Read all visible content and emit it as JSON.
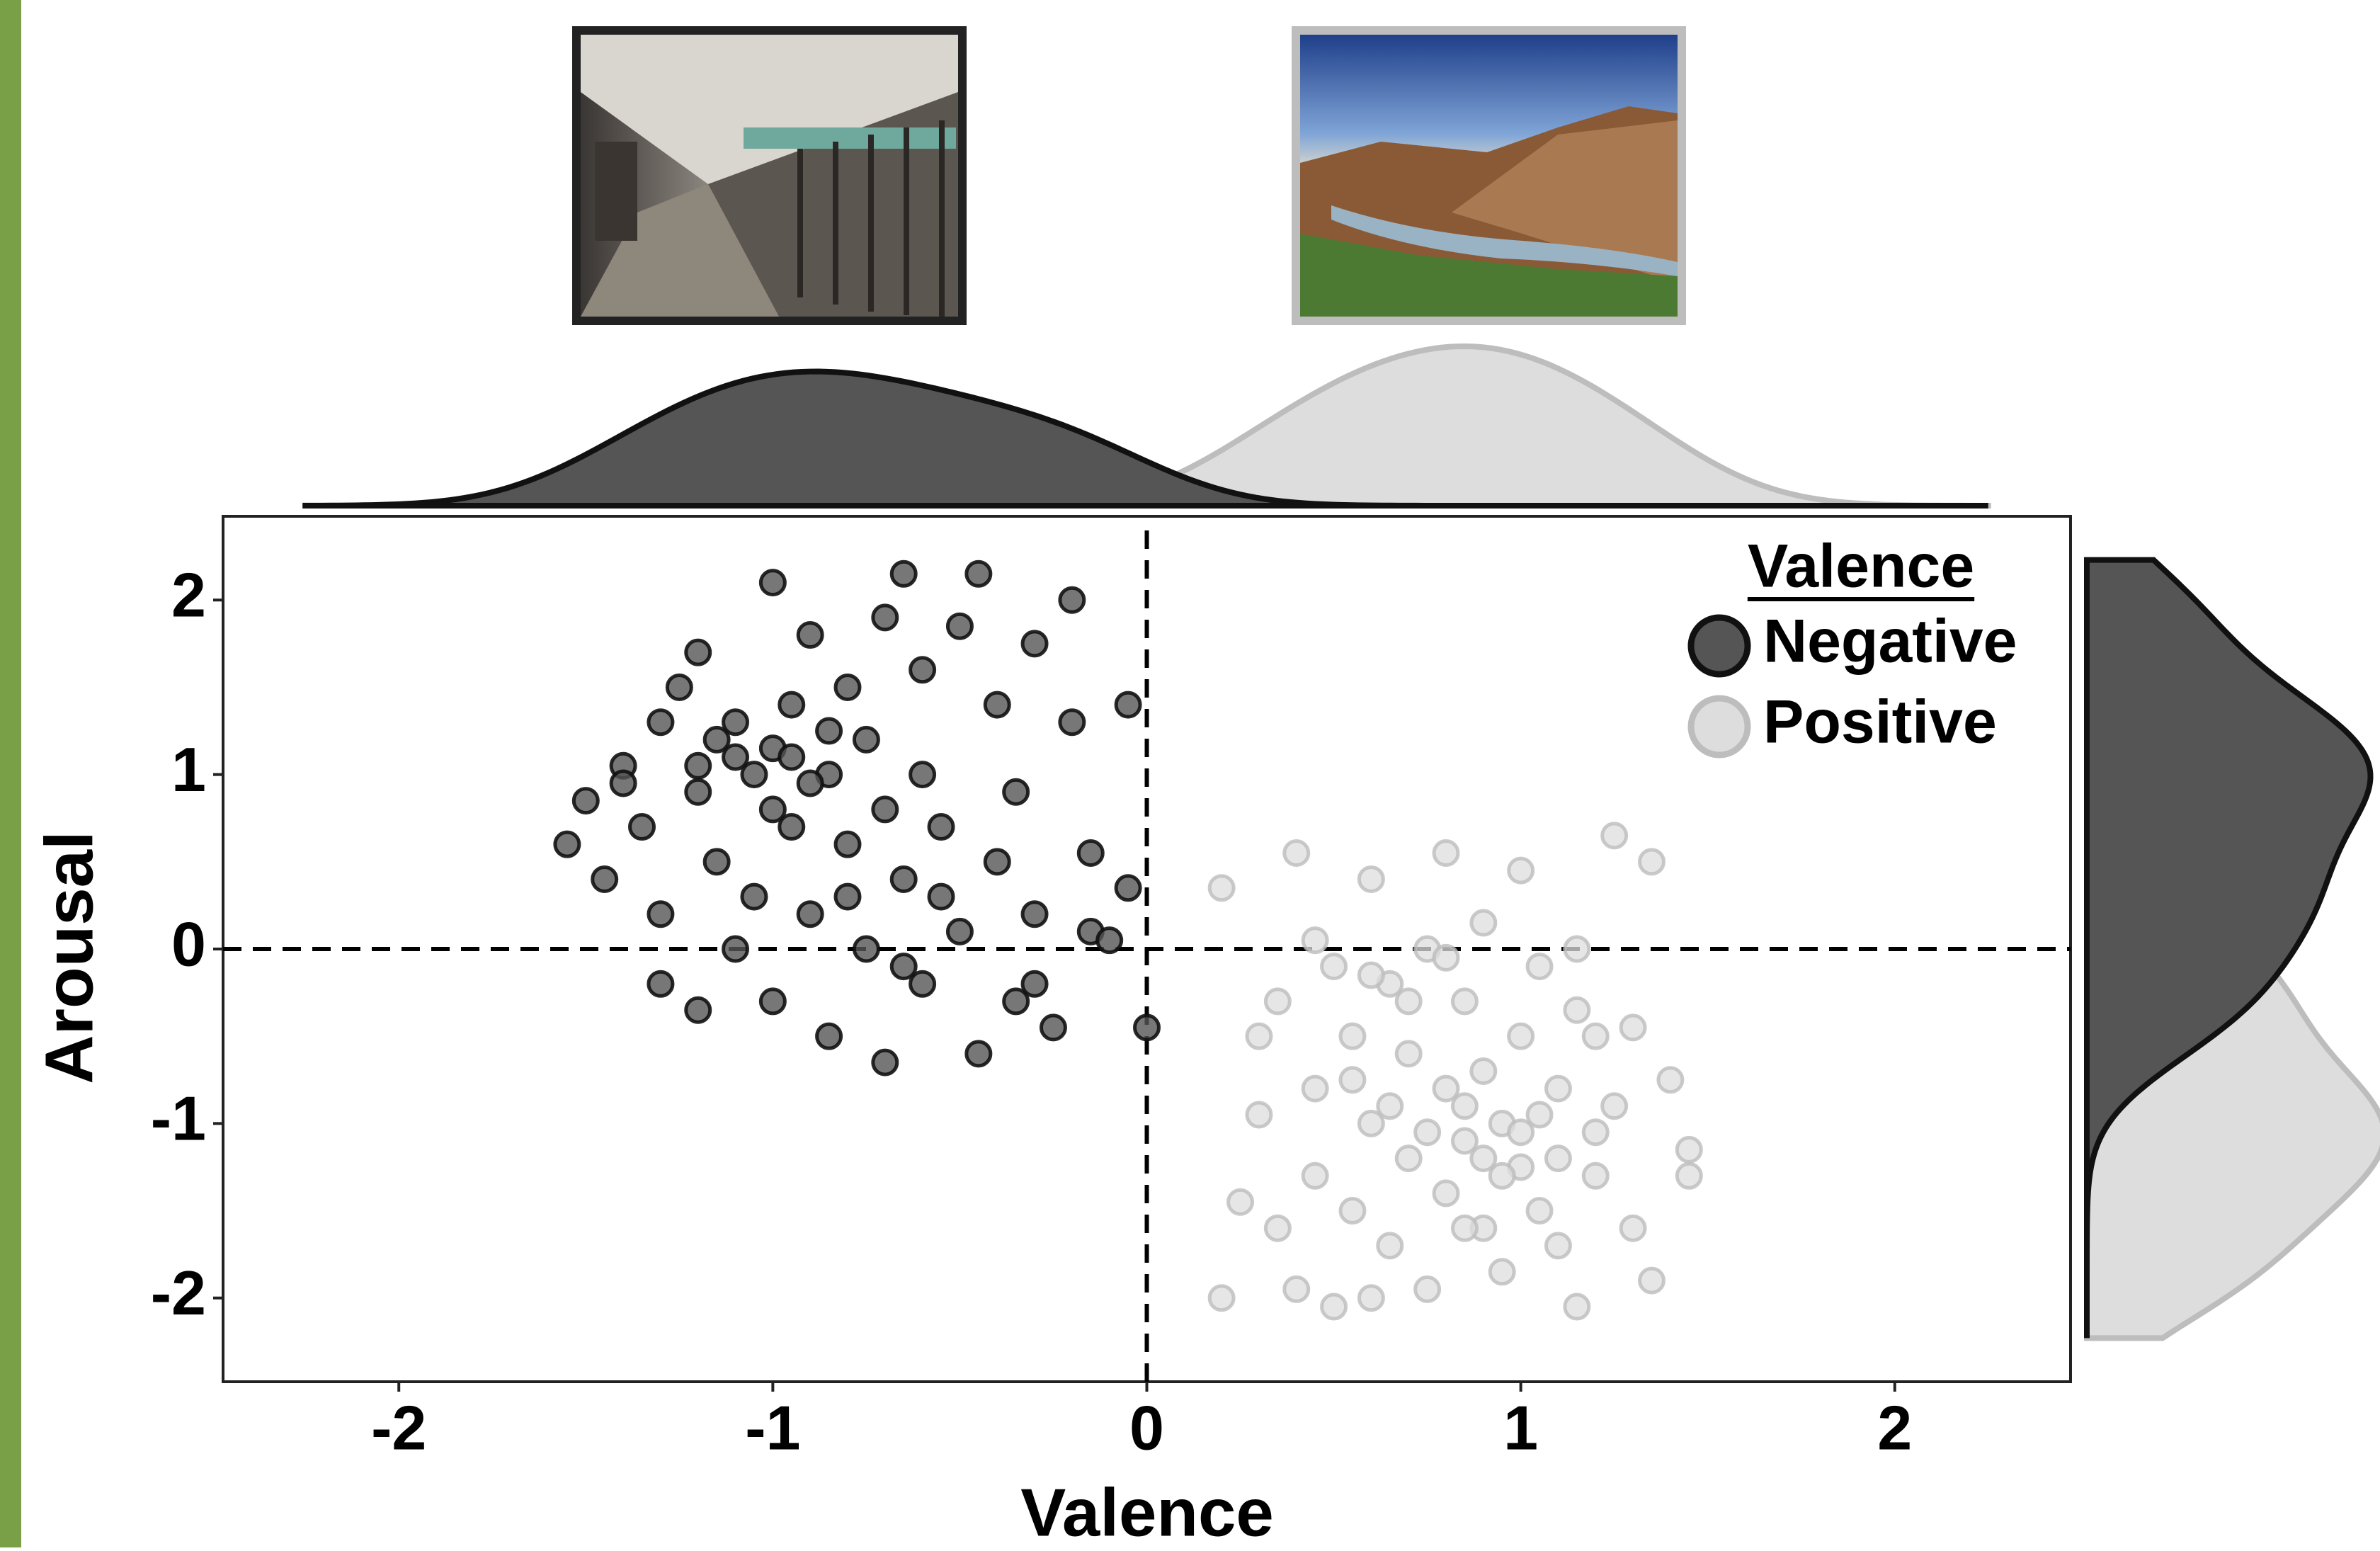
{
  "chart_data": {
    "type": "scatter",
    "x_label": "Valence",
    "y_label": "Arousal",
    "legend_title": "Valence",
    "xlim": [
      -2.47,
      2.47
    ],
    "ylim": [
      -2.48,
      2.48
    ],
    "xticks": [
      -2,
      -1,
      0,
      1,
      2
    ],
    "yticks": [
      -2,
      -1,
      0,
      1,
      2
    ],
    "reference_lines": {
      "x": 0,
      "y": 0
    },
    "legend_position": "top-right",
    "series": [
      {
        "name": "Negative",
        "color": "#555555",
        "edge_color": "#111111",
        "x": [
          -1.55,
          -1.5,
          -1.45,
          -1.4,
          -1.35,
          -1.3,
          -1.3,
          -1.25,
          -1.2,
          -1.2,
          -1.15,
          -1.15,
          -1.1,
          -1.1,
          -1.05,
          -1.05,
          -1.0,
          -1.0,
          -1.0,
          -0.95,
          -0.95,
          -0.9,
          -0.9,
          -0.85,
          -0.85,
          -0.8,
          -0.8,
          -0.75,
          -0.75,
          -0.7,
          -0.7,
          -0.7,
          -0.65,
          -0.65,
          -0.6,
          -0.6,
          -0.6,
          -0.55,
          -0.5,
          -0.5,
          -0.45,
          -0.45,
          -0.4,
          -0.4,
          -0.35,
          -0.35,
          -0.3,
          -0.3,
          -0.25,
          -0.2,
          -0.2,
          -0.15,
          -0.15,
          -0.05,
          -0.05,
          0.0,
          -1.3,
          -1.2,
          -0.9,
          -1.1,
          -1.0,
          -0.85,
          -0.95,
          -1.2,
          -0.8,
          -0.55,
          -0.65,
          -0.3,
          -1.4,
          -0.1
        ],
        "values": [
          0.6,
          0.85,
          0.4,
          1.05,
          0.7,
          1.3,
          0.2,
          1.5,
          1.7,
          0.9,
          1.2,
          0.5,
          1.3,
          0.0,
          1.0,
          0.3,
          1.15,
          2.1,
          -0.3,
          1.4,
          0.7,
          1.8,
          0.2,
          1.0,
          -0.5,
          1.5,
          0.6,
          1.2,
          0.0,
          1.9,
          0.8,
          -0.65,
          2.15,
          0.4,
          1.6,
          1.0,
          -0.2,
          0.7,
          1.85,
          0.1,
          2.15,
          -0.6,
          1.4,
          0.5,
          0.9,
          -0.3,
          1.75,
          0.2,
          -0.45,
          2.0,
          1.3,
          0.55,
          0.1,
          1.4,
          0.35,
          -0.45,
          -0.2,
          -0.35,
          0.95,
          1.1,
          0.8,
          1.25,
          1.1,
          1.05,
          0.3,
          0.3,
          -0.1,
          -0.2,
          0.95,
          0.05
        ]
      },
      {
        "name": "Positive",
        "color": "#dddddd",
        "edge_color": "#bdbdbd",
        "x": [
          0.2,
          0.2,
          0.25,
          0.3,
          0.3,
          0.35,
          0.4,
          0.4,
          0.45,
          0.45,
          0.5,
          0.5,
          0.55,
          0.55,
          0.6,
          0.6,
          0.6,
          0.65,
          0.65,
          0.7,
          0.7,
          0.75,
          0.75,
          0.8,
          0.8,
          0.8,
          0.85,
          0.85,
          0.9,
          0.9,
          0.9,
          0.95,
          0.95,
          1.0,
          1.0,
          1.0,
          1.05,
          1.05,
          1.1,
          1.1,
          1.15,
          1.15,
          1.2,
          1.2,
          1.25,
          1.25,
          1.3,
          1.3,
          1.35,
          1.35,
          1.4,
          1.45,
          1.45,
          0.85,
          0.95,
          1.0,
          0.9,
          1.05,
          0.75,
          0.7,
          0.65,
          0.55,
          0.85,
          1.1,
          1.2,
          0.6,
          0.45,
          0.8,
          1.15,
          0.35
        ],
        "values": [
          0.35,
          -2.0,
          -1.45,
          -0.5,
          -0.95,
          -0.3,
          0.55,
          -1.95,
          -0.8,
          -1.3,
          -0.1,
          -2.05,
          -1.5,
          -0.5,
          0.4,
          -1.0,
          -2.0,
          -0.2,
          -1.7,
          -0.6,
          -1.2,
          0.0,
          -1.95,
          0.55,
          -0.8,
          -1.4,
          -0.3,
          -1.1,
          0.15,
          -0.7,
          -1.6,
          -1.0,
          -1.85,
          0.45,
          -0.5,
          -1.25,
          -0.1,
          -1.5,
          -0.8,
          -1.7,
          0.0,
          -2.05,
          -0.5,
          -1.3,
          0.65,
          -0.9,
          -0.45,
          -1.6,
          0.5,
          -1.9,
          -0.75,
          -1.15,
          -1.3,
          -0.9,
          -1.3,
          -1.05,
          -1.2,
          -0.95,
          -1.05,
          -0.3,
          -0.9,
          -0.75,
          -1.6,
          -1.2,
          -1.05,
          -0.15,
          0.05,
          -0.05,
          -0.35,
          -1.6
        ]
      }
    ]
  }
}
